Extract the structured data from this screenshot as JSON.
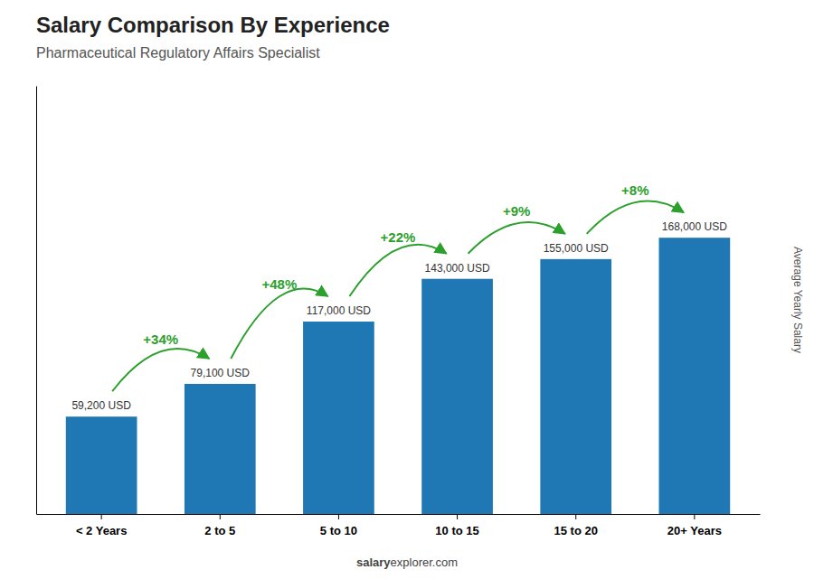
{
  "chart_data": {
    "type": "bar",
    "title": "Salary Comparison By Experience",
    "subtitle": "Pharmaceutical Regulatory Affairs Specialist",
    "y_label": "Average Yearly Salary",
    "categories": [
      "< 2 Years",
      "2 to 5",
      "5 to 10",
      "10 to 15",
      "15 to 20",
      "20+ Years"
    ],
    "values": [
      59200,
      79100,
      117000,
      143000,
      155000,
      168000
    ],
    "value_labels": [
      "59,200 USD",
      "79,100 USD",
      "117,000 USD",
      "143,000 USD",
      "155,000 USD",
      "168,000 USD"
    ],
    "data_labels": true,
    "annotations": [
      "+34%",
      "+48%",
      "+22%",
      "+9%",
      "+8%"
    ],
    "watermark": [
      "salary",
      "explorer.com"
    ],
    "ylim": [
      0,
      260400
    ],
    "tick_labels": "x",
    "grid": false
  }
}
